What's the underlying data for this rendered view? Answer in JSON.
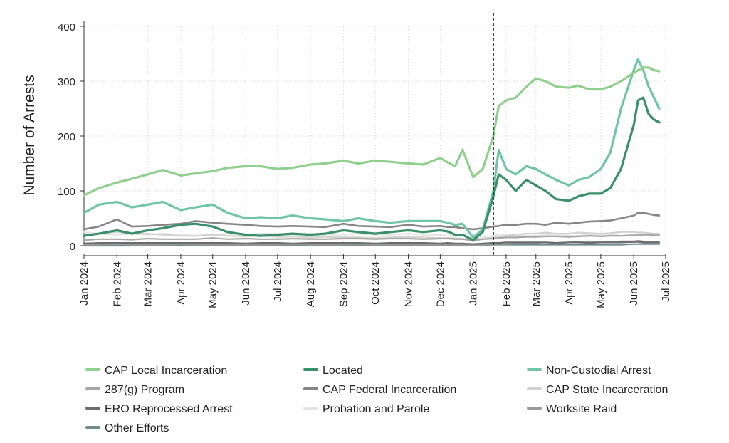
{
  "chart_data": {
    "type": "line",
    "title": "",
    "xlabel": "",
    "ylabel": "Number of Arrests",
    "ylim": [
      0,
      400
    ],
    "y_ticks": [
      "0",
      "100",
      "200",
      "300",
      "400"
    ],
    "xlim": [
      "2024-01-01",
      "2025-07-01"
    ],
    "x_ticks": [
      "Jan 2024",
      "Feb 2024",
      "Mar 2024",
      "Apr 2024",
      "May 2024",
      "Jun 2024",
      "Jul 2024",
      "Aug 2024",
      "Sep 2024",
      "Oct 2024",
      "Nov 2024",
      "Dec 2024",
      "Jan 2025",
      "Feb 2025",
      "Mar 2025",
      "Apr 2025",
      "May 2025",
      "Jun 2025",
      "Jul 2025"
    ],
    "grid": true,
    "vertical_marker": "2025-01-20",
    "legend_position": "bottom",
    "x": [
      "2024-01-01",
      "2024-01-15",
      "2024-02-01",
      "2024-02-15",
      "2024-03-01",
      "2024-03-15",
      "2024-04-01",
      "2024-04-15",
      "2024-05-01",
      "2024-05-15",
      "2024-06-01",
      "2024-06-15",
      "2024-07-01",
      "2024-07-15",
      "2024-08-01",
      "2024-08-15",
      "2024-09-01",
      "2024-09-15",
      "2024-10-01",
      "2024-10-15",
      "2024-11-01",
      "2024-11-15",
      "2024-12-01",
      "2024-12-08",
      "2024-12-15",
      "2024-12-22",
      "2025-01-01",
      "2025-01-10",
      "2025-01-20",
      "2025-01-25",
      "2025-02-01",
      "2025-02-10",
      "2025-02-20",
      "2025-03-01",
      "2025-03-10",
      "2025-03-20",
      "2025-04-01",
      "2025-04-10",
      "2025-04-20",
      "2025-05-01",
      "2025-05-10",
      "2025-05-20",
      "2025-06-01",
      "2025-06-05",
      "2025-06-10",
      "2025-06-15",
      "2025-06-20",
      "2025-06-25"
    ],
    "series": [
      {
        "name": "CAP Local Incarceration",
        "color": "#90cf8e",
        "width": 3.2,
        "values": [
          92,
          105,
          115,
          122,
          130,
          138,
          128,
          132,
          136,
          142,
          145,
          145,
          140,
          142,
          148,
          150,
          155,
          150,
          155,
          153,
          150,
          148,
          160,
          152,
          145,
          175,
          125,
          140,
          200,
          255,
          265,
          270,
          290,
          305,
          300,
          290,
          288,
          292,
          285,
          285,
          290,
          300,
          315,
          320,
          325,
          325,
          320,
          318
        ]
      },
      {
        "name": "Located",
        "color": "#3a8f6b",
        "width": 3.2,
        "values": [
          18,
          22,
          28,
          22,
          28,
          32,
          38,
          40,
          35,
          25,
          20,
          18,
          20,
          22,
          20,
          22,
          28,
          25,
          22,
          25,
          28,
          25,
          28,
          26,
          20,
          20,
          10,
          25,
          90,
          130,
          120,
          100,
          120,
          110,
          100,
          85,
          82,
          90,
          95,
          95,
          105,
          140,
          220,
          265,
          270,
          240,
          230,
          225
        ]
      },
      {
        "name": "Non-Custodial Arrest",
        "color": "#6fc5a5",
        "width": 3.2,
        "values": [
          60,
          75,
          80,
          70,
          75,
          80,
          65,
          70,
          75,
          60,
          50,
          52,
          50,
          55,
          50,
          48,
          45,
          50,
          45,
          42,
          45,
          45,
          45,
          42,
          38,
          40,
          15,
          30,
          100,
          175,
          140,
          130,
          145,
          140,
          130,
          120,
          110,
          120,
          125,
          140,
          170,
          250,
          320,
          340,
          320,
          290,
          270,
          250
        ]
      },
      {
        "name": "287(g) Program",
        "color": "#a6a6a6",
        "width": 2.2,
        "values": [
          10,
          12,
          12,
          11,
          13,
          12,
          12,
          12,
          14,
          12,
          13,
          12,
          12,
          13,
          12,
          12,
          13,
          13,
          12,
          13,
          13,
          12,
          13,
          13,
          12,
          12,
          10,
          12,
          13,
          14,
          15,
          15,
          16,
          16,
          17,
          17,
          16,
          17,
          18,
          17,
          18,
          18,
          19,
          19,
          20,
          20,
          19,
          19
        ]
      },
      {
        "name": "CAP Federal Incarceration",
        "color": "#858585",
        "width": 2.6,
        "values": [
          30,
          35,
          48,
          35,
          36,
          38,
          40,
          45,
          42,
          40,
          38,
          36,
          35,
          36,
          35,
          34,
          40,
          36,
          35,
          34,
          38,
          35,
          36,
          34,
          34,
          32,
          30,
          32,
          35,
          36,
          38,
          38,
          40,
          40,
          38,
          42,
          40,
          42,
          44,
          45,
          46,
          50,
          55,
          60,
          60,
          58,
          56,
          55
        ]
      },
      {
        "name": "CAP State Incarceration",
        "color": "#d2d2d2",
        "width": 2.2,
        "values": [
          20,
          22,
          25,
          22,
          22,
          20,
          18,
          18,
          20,
          18,
          17,
          18,
          16,
          17,
          15,
          16,
          15,
          15,
          14,
          15,
          16,
          15,
          14,
          14,
          14,
          13,
          8,
          12,
          15,
          16,
          18,
          20,
          22,
          22,
          24,
          22,
          22,
          24,
          23,
          22,
          23,
          25,
          25,
          24,
          24,
          23,
          22,
          22
        ]
      },
      {
        "name": "ERO Reprocessed Arrest",
        "color": "#6b6b6b",
        "width": 2.2,
        "values": [
          4,
          5,
          5,
          5,
          5,
          5,
          5,
          5,
          5,
          5,
          4,
          5,
          5,
          4,
          5,
          5,
          5,
          5,
          4,
          5,
          5,
          5,
          4,
          5,
          4,
          4,
          3,
          4,
          5,
          5,
          6,
          6,
          6,
          6,
          6,
          5,
          6,
          6,
          5,
          6,
          6,
          6,
          7,
          7,
          6,
          6,
          6,
          6
        ]
      },
      {
        "name": "Probation and Parole",
        "color": "#e4e4e4",
        "width": 2.2,
        "values": [
          25,
          22,
          20,
          22,
          20,
          22,
          20,
          18,
          20,
          22,
          20,
          22,
          22,
          20,
          22,
          20,
          20,
          22,
          20,
          20,
          22,
          20,
          20,
          18,
          18,
          18,
          12,
          15,
          18,
          20,
          20,
          20,
          18,
          18,
          20,
          20,
          18,
          18,
          20,
          20,
          20,
          18,
          20,
          20,
          20,
          18,
          18,
          18
        ]
      },
      {
        "name": "Worksite Raid",
        "color": "#999999",
        "width": 2.2,
        "values": [
          2,
          2,
          3,
          2,
          2,
          2,
          3,
          2,
          2,
          2,
          2,
          2,
          2,
          3,
          2,
          2,
          2,
          3,
          2,
          2,
          2,
          2,
          2,
          2,
          2,
          2,
          1,
          2,
          3,
          3,
          3,
          4,
          4,
          5,
          6,
          5,
          6,
          7,
          8,
          6,
          7,
          8,
          8,
          9,
          8,
          7,
          7,
          6
        ]
      },
      {
        "name": "Other Efforts",
        "color": "#6f8c86",
        "width": 2.2,
        "values": [
          0,
          0,
          0,
          0,
          1,
          1,
          1,
          1,
          1,
          1,
          1,
          1,
          1,
          1,
          1,
          1,
          1,
          1,
          1,
          1,
          1,
          1,
          1,
          1,
          1,
          1,
          1,
          1,
          2,
          2,
          2,
          2,
          2,
          2,
          2,
          2,
          2,
          2,
          2,
          2,
          2,
          2,
          3,
          3,
          3,
          3,
          3,
          3
        ]
      }
    ]
  }
}
